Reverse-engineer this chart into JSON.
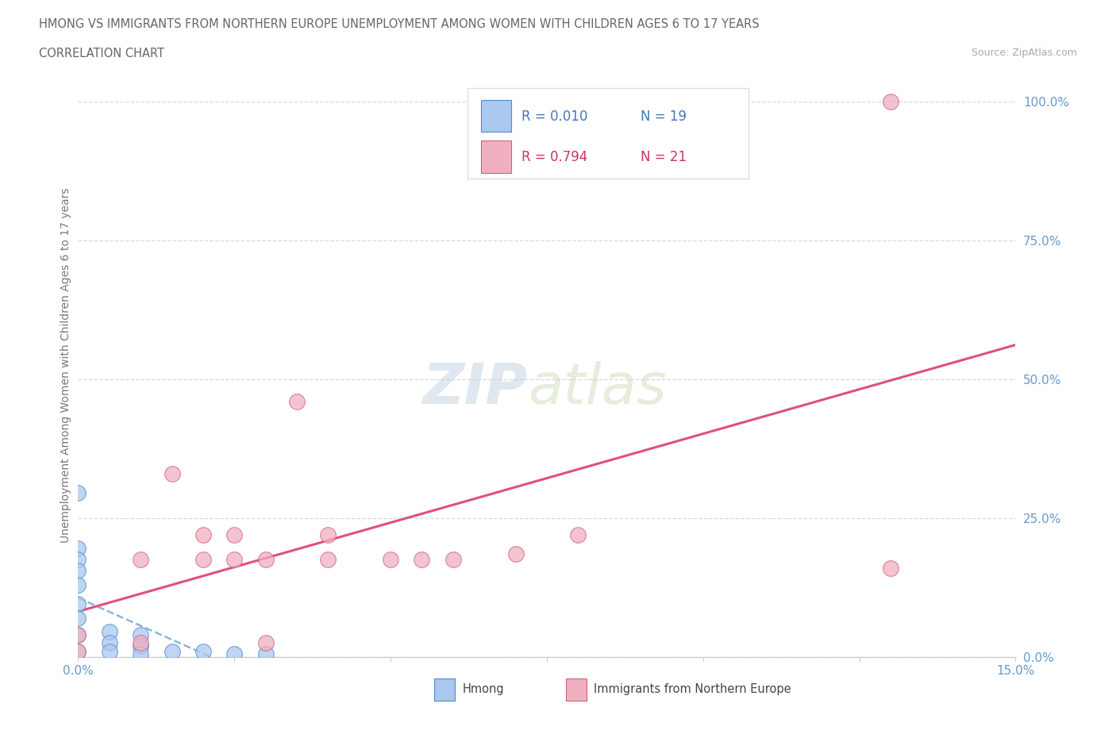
{
  "title_line1": "HMONG VS IMMIGRANTS FROM NORTHERN EUROPE UNEMPLOYMENT AMONG WOMEN WITH CHILDREN AGES 6 TO 17 YEARS",
  "title_line2": "CORRELATION CHART",
  "source": "Source: ZipAtlas.com",
  "ylabel": "Unemployment Among Women with Children Ages 6 to 17 years",
  "x_min": 0.0,
  "x_max": 0.15,
  "y_min": 0.0,
  "y_max": 1.05,
  "x_ticks": [
    0.0,
    0.025,
    0.05,
    0.075,
    0.1,
    0.125,
    0.15
  ],
  "y_ticks": [
    0.0,
    0.25,
    0.5,
    0.75,
    1.0
  ],
  "y_tick_labels": [
    "0.0%",
    "25.0%",
    "50.0%",
    "75.0%",
    "100.0%"
  ],
  "hmong_x": [
    0.0,
    0.0,
    0.0,
    0.0,
    0.0,
    0.0,
    0.0,
    0.0,
    0.0,
    0.005,
    0.005,
    0.005,
    0.01,
    0.01,
    0.01,
    0.015,
    0.02,
    0.025,
    0.03
  ],
  "hmong_y": [
    0.295,
    0.195,
    0.175,
    0.155,
    0.13,
    0.095,
    0.07,
    0.04,
    0.01,
    0.045,
    0.025,
    0.01,
    0.04,
    0.02,
    0.005,
    0.01,
    0.01,
    0.005,
    0.005
  ],
  "north_eu_x": [
    0.0,
    0.0,
    0.01,
    0.01,
    0.015,
    0.02,
    0.02,
    0.025,
    0.025,
    0.03,
    0.03,
    0.035,
    0.04,
    0.04,
    0.05,
    0.055,
    0.06,
    0.07,
    0.08,
    0.13,
    0.13
  ],
  "north_eu_y": [
    0.04,
    0.01,
    0.175,
    0.025,
    0.33,
    0.22,
    0.175,
    0.22,
    0.175,
    0.175,
    0.025,
    0.46,
    0.22,
    0.175,
    0.175,
    0.175,
    0.175,
    0.185,
    0.22,
    1.0,
    0.16
  ],
  "hmong_color": "#aac8f0",
  "hmong_edge_color": "#5588cc",
  "north_eu_color": "#f0b0c0",
  "north_eu_edge_color": "#d06080",
  "trendline_hmong_color": "#7aaad0",
  "trendline_north_eu_color": "#e0507a",
  "r_hmong": "R = 0.010",
  "n_hmong": "N = 19",
  "r_north_eu": "R = 0.794",
  "n_north_eu": "N = 21",
  "watermark_zip": "ZIP",
  "watermark_atlas": "atlas",
  "background_color": "#ffffff",
  "grid_color": "#c8d8e8",
  "axis_color": "#cccccc"
}
